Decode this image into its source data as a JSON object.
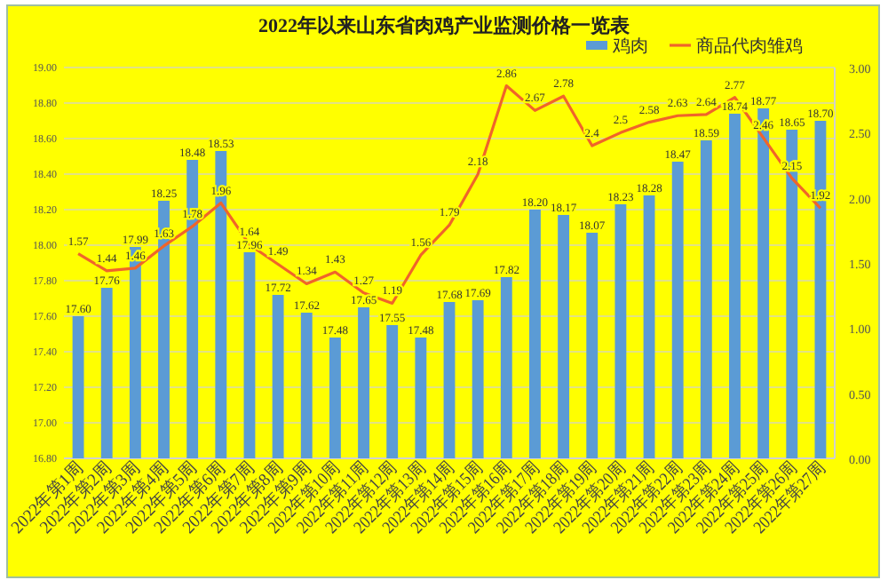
{
  "chart_data": {
    "type": "bar",
    "title": "2022年以来山东省肉鸡产业监测价格一览表",
    "categories": [
      "2022年第1周",
      "2022年第2周",
      "2022年第3周",
      "2022年第4周",
      "2022年第5周",
      "2022年第6周",
      "2022年第7周",
      "2022年第8周",
      "2022年第9周",
      "2022年第10周",
      "2022年第11周",
      "2022年第12周",
      "2022年第13周",
      "2022年第14周",
      "2022年第15周",
      "2022年第16周",
      "2022年第17周",
      "2022年第18周",
      "2022年第19周",
      "2022年第20周",
      "2022年第21周",
      "2022年第22周",
      "2022年第23周",
      "2022年第24周",
      "2022年第25周",
      "2022年第26周",
      "2022年第27周"
    ],
    "series": [
      {
        "name": "鸡肉",
        "type": "bar",
        "color": "#5b9bd5",
        "values": [
          17.6,
          17.76,
          17.99,
          18.25,
          18.48,
          18.53,
          17.96,
          17.72,
          17.62,
          17.48,
          17.65,
          17.55,
          17.48,
          17.68,
          17.69,
          17.82,
          18.2,
          18.17,
          18.07,
          18.23,
          18.28,
          18.47,
          18.59,
          18.74,
          18.77,
          18.65,
          18.7
        ],
        "value_labels": [
          "17.60",
          "17.76",
          "17.99",
          "18.25",
          "18.48",
          "18.53",
          "17.96",
          "17.72",
          "17.62",
          "17.48",
          "17.65",
          "17.55",
          "17.48",
          "17.68",
          "17.69",
          "17.82",
          "18.20",
          "18.17",
          "18.07",
          "18.23",
          "18.28",
          "18.47",
          "18.59",
          "18.74",
          "18.77",
          "18.65",
          "18.70"
        ]
      },
      {
        "name": "商品代肉雏鸡",
        "type": "line",
        "axis": "y2",
        "color": "#f0642a",
        "values": [
          1.57,
          1.44,
          1.46,
          1.63,
          1.78,
          1.96,
          1.64,
          1.49,
          1.34,
          1.43,
          1.27,
          1.19,
          1.56,
          1.79,
          2.18,
          2.86,
          2.67,
          2.78,
          2.4,
          2.5,
          2.58,
          2.63,
          2.64,
          2.77,
          2.46,
          2.15,
          1.92
        ],
        "value_labels": [
          "1.57",
          "1.44",
          "1.46",
          "1.63",
          "1.78",
          "1.96",
          "1.64",
          "1.49",
          "1.34",
          "1.43",
          "1.27",
          "1.19",
          "1.56",
          "1.79",
          "2.18",
          "2.86",
          "2.67",
          "2.78",
          "2.4",
          "2.5",
          "2.58",
          "2.63",
          "2.64",
          "2.77",
          "2.46",
          "2.15",
          "1.92"
        ]
      }
    ],
    "ylim": [
      16.8,
      19
    ],
    "yticks": [
      {
        "value": 16.8,
        "label": "16.80"
      },
      {
        "value": 17,
        "label": "17.00"
      },
      {
        "value": 17.2,
        "label": "17.20"
      },
      {
        "value": 17.4,
        "label": "17.40"
      },
      {
        "value": 17.6,
        "label": "17.60"
      },
      {
        "value": 17.8,
        "label": "17.80"
      },
      {
        "value": 18,
        "label": "18.00"
      },
      {
        "value": 18.2,
        "label": "18.20"
      },
      {
        "value": 18.4,
        "label": "18.40"
      },
      {
        "value": 18.6,
        "label": "18.60"
      },
      {
        "value": 18.8,
        "label": "18.80"
      },
      {
        "value": 19,
        "label": "19.00"
      }
    ],
    "y2lim": [
      0,
      3
    ],
    "y2ticks": [
      {
        "value": 0,
        "label": "0.00"
      },
      {
        "value": 0.5,
        "label": "0.50"
      },
      {
        "value": 1,
        "label": "1.00"
      },
      {
        "value": 1.5,
        "label": "1.50"
      },
      {
        "value": 2,
        "label": "2.00"
      },
      {
        "value": 2.5,
        "label": "2.50"
      },
      {
        "value": 3,
        "label": "3.00"
      }
    ],
    "grid": "y",
    "legend": "top right",
    "marker": "none",
    "line_style": "solid"
  }
}
